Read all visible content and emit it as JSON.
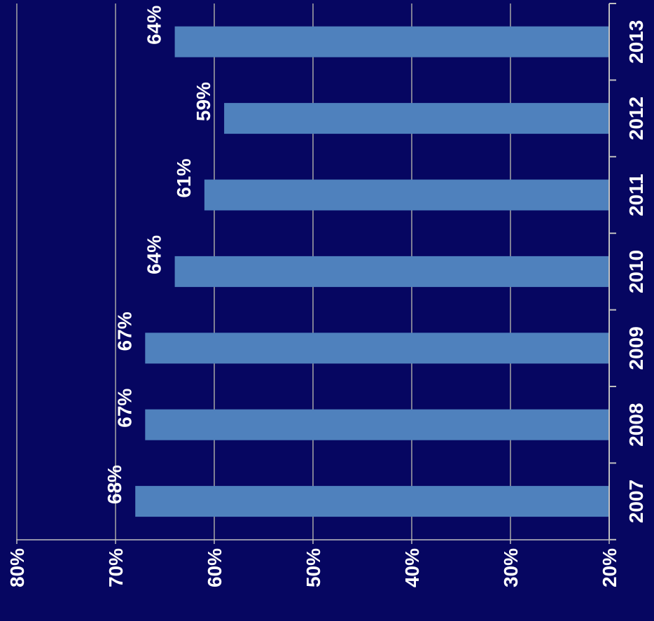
{
  "chart_data": {
    "type": "bar",
    "orientation": "horizontal",
    "categories": [
      "2007",
      "2008",
      "2009",
      "2010",
      "2011",
      "2012",
      "2013"
    ],
    "values": [
      68,
      67,
      67,
      64,
      61,
      59,
      64
    ],
    "data_labels": [
      "68%",
      "67%",
      "67%",
      "64%",
      "61%",
      "59%",
      "64%"
    ],
    "x_ticks": [
      "20%",
      "30%",
      "40%",
      "50%",
      "60%",
      "70%",
      "80%"
    ],
    "xlim": [
      20,
      80
    ],
    "title": "",
    "xlabel": "",
    "ylabel": "",
    "grid": true,
    "legend": "none",
    "rotation": "rotated 90 degrees clockwise",
    "colors": {
      "background": "#060661",
      "bar": "#4f81bd",
      "gridline": "#a6a6a6",
      "axis": "#bfbfbf",
      "text": "#ffffff"
    }
  }
}
